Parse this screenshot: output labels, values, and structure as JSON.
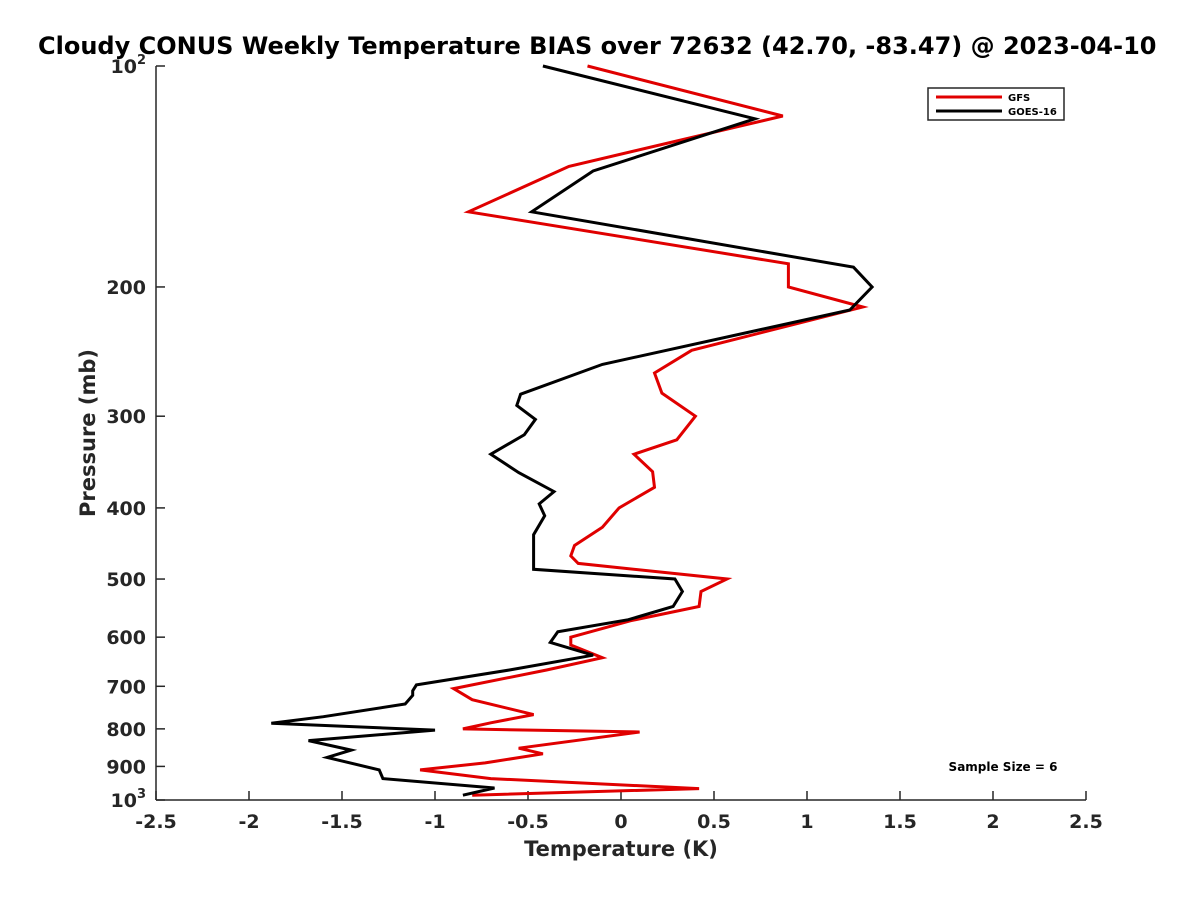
{
  "chart_data": {
    "type": "line",
    "title": "Cloudy CONUS Weekly Temperature BIAS over 72632 (42.70, -83.47) @ 2023-04-10",
    "xlabel": "Temperature (K)",
    "ylabel": "Pressure (mb)",
    "xlim": [
      -2.5,
      2.5
    ],
    "ylim": [
      100,
      1000
    ],
    "y_scale": "log",
    "y_reversed": true,
    "x_ticks": [
      {
        "value": -2.5,
        "label": "-2.5"
      },
      {
        "value": -2,
        "label": "-2"
      },
      {
        "value": -1.5,
        "label": "-1.5"
      },
      {
        "value": -1,
        "label": "-1"
      },
      {
        "value": -0.5,
        "label": "-0.5"
      },
      {
        "value": 0,
        "label": "0"
      },
      {
        "value": 0.5,
        "label": "0.5"
      },
      {
        "value": 1,
        "label": "1"
      },
      {
        "value": 1.5,
        "label": "1.5"
      },
      {
        "value": 2,
        "label": "2"
      },
      {
        "value": 2.5,
        "label": "2.5"
      }
    ],
    "y_ticks": [
      {
        "value": 100,
        "label": "10",
        "sup": "2"
      },
      {
        "value": 200,
        "label": "200"
      },
      {
        "value": 300,
        "label": "300"
      },
      {
        "value": 400,
        "label": "400"
      },
      {
        "value": 500,
        "label": "500"
      },
      {
        "value": 600,
        "label": "600"
      },
      {
        "value": 700,
        "label": "700"
      },
      {
        "value": 800,
        "label": "800"
      },
      {
        "value": 900,
        "label": "900"
      },
      {
        "value": 1000,
        "label": "10",
        "sup": "3"
      }
    ],
    "legend_position": "top-right",
    "grid": false,
    "annotation": "Sample Size = 6",
    "series": [
      {
        "name": "GFS",
        "color": "#e00000",
        "points": [
          [
            -0.18,
            100
          ],
          [
            0.87,
            117
          ],
          [
            -0.28,
            137
          ],
          [
            -0.82,
            158
          ],
          [
            0.9,
            186
          ],
          [
            0.9,
            200
          ],
          [
            1.3,
            213
          ],
          [
            0.38,
            244
          ],
          [
            0.18,
            262
          ],
          [
            0.22,
            279
          ],
          [
            0.4,
            300
          ],
          [
            0.3,
            323
          ],
          [
            0.07,
            338
          ],
          [
            0.17,
            357
          ],
          [
            0.18,
            375
          ],
          [
            -0.01,
            400
          ],
          [
            -0.1,
            425
          ],
          [
            -0.25,
            450
          ],
          [
            -0.27,
            465
          ],
          [
            -0.23,
            476
          ],
          [
            0.57,
            500
          ],
          [
            0.43,
            520
          ],
          [
            0.42,
            545
          ],
          [
            0.05,
            570
          ],
          [
            -0.27,
            600
          ],
          [
            -0.27,
            615
          ],
          [
            -0.1,
            640
          ],
          [
            -0.4,
            665
          ],
          [
            -0.9,
            705
          ],
          [
            -0.8,
            730
          ],
          [
            -0.47,
            765
          ],
          [
            -0.7,
            785
          ],
          [
            -0.85,
            800
          ],
          [
            0.1,
            808
          ],
          [
            -0.55,
            850
          ],
          [
            -0.42,
            865
          ],
          [
            -0.73,
            890
          ],
          [
            -1.08,
            910
          ],
          [
            -0.7,
            935
          ],
          [
            0.42,
            965
          ],
          [
            -0.8,
            985
          ]
        ]
      },
      {
        "name": "GOES-16",
        "color": "#000000",
        "points": [
          [
            -0.42,
            100
          ],
          [
            0.72,
            118
          ],
          [
            -0.15,
            139
          ],
          [
            -0.48,
            158
          ],
          [
            1.25,
            188
          ],
          [
            1.35,
            200
          ],
          [
            1.23,
            215
          ],
          [
            -0.1,
            255
          ],
          [
            -0.54,
            280
          ],
          [
            -0.56,
            290
          ],
          [
            -0.46,
            303
          ],
          [
            -0.52,
            318
          ],
          [
            -0.7,
            338
          ],
          [
            -0.55,
            358
          ],
          [
            -0.36,
            380
          ],
          [
            -0.44,
            395
          ],
          [
            -0.41,
            410
          ],
          [
            -0.47,
            435
          ],
          [
            -0.47,
            485
          ],
          [
            0.29,
            500
          ],
          [
            0.33,
            520
          ],
          [
            0.28,
            545
          ],
          [
            0.04,
            568
          ],
          [
            -0.34,
            590
          ],
          [
            -0.38,
            610
          ],
          [
            -0.15,
            635
          ],
          [
            -0.6,
            665
          ],
          [
            -1.1,
            697
          ],
          [
            -1.12,
            710
          ],
          [
            -1.12,
            720
          ],
          [
            -1.16,
            740
          ],
          [
            -1.6,
            770
          ],
          [
            -1.88,
            786
          ],
          [
            -1.0,
            803
          ],
          [
            -1.68,
            830
          ],
          [
            -1.45,
            855
          ],
          [
            -1.58,
            875
          ],
          [
            -1.3,
            910
          ],
          [
            -1.28,
            935
          ],
          [
            -0.68,
            963
          ],
          [
            -0.85,
            985
          ]
        ]
      }
    ]
  }
}
